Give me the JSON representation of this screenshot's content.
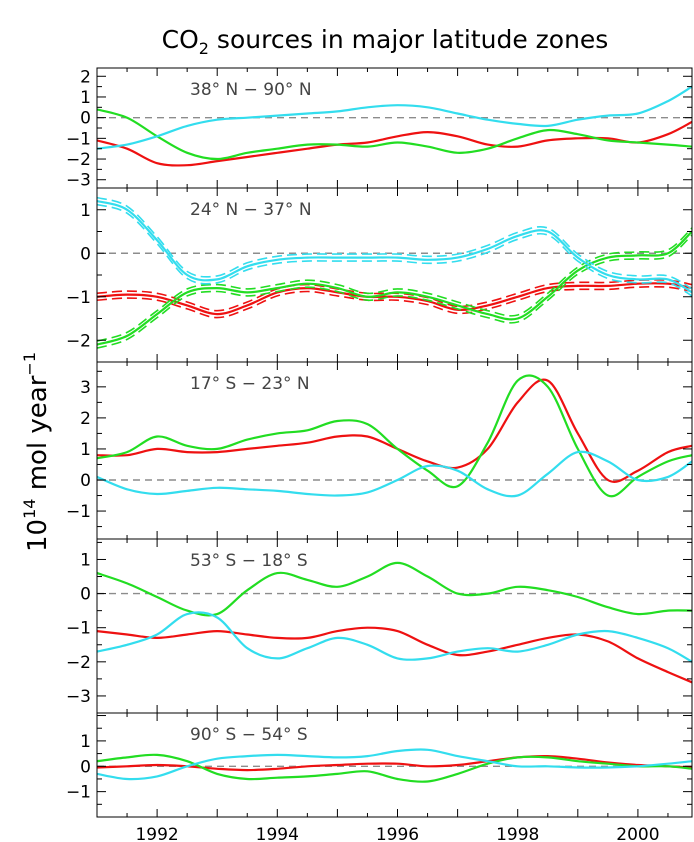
{
  "chart_data": {
    "type": "line",
    "title_main": "CO",
    "title_sub": "2",
    "title_rest": " sources in major latitude zones",
    "ylabel_main": "10",
    "ylabel_sup": "14",
    "ylabel_mid": " mol year",
    "ylabel_sup2": "−1",
    "xlim": [
      1991.0,
      2000.9
    ],
    "x_ticks": [
      1992,
      1994,
      1996,
      1998,
      2000
    ],
    "x_tick_labels": [
      "1992",
      "1994",
      "1996",
      "1998",
      "2000"
    ],
    "colors": {
      "red": "#ee1111",
      "green": "#22dd22",
      "cyan": "#33ddee"
    },
    "panels": [
      {
        "zone_label": "38° N − 90° N",
        "ylim": [
          -3.4,
          2.4
        ],
        "y_ticks": [
          2,
          1,
          0,
          -1,
          -2,
          -3
        ],
        "y_tick_labels": [
          "2",
          "1",
          "0",
          "−1",
          "−2",
          "−3"
        ],
        "series": [
          {
            "color": "red",
            "x": [
              1991.0,
              1991.5,
              1992.0,
              1992.5,
              1993.0,
              1993.5,
              1994.0,
              1994.5,
              1995.0,
              1995.5,
              1996.0,
              1996.5,
              1997.0,
              1997.5,
              1998.0,
              1998.5,
              1999.0,
              1999.5,
              2000.0,
              2000.5,
              2000.9
            ],
            "y": [
              -1.1,
              -1.5,
              -2.2,
              -2.3,
              -2.1,
              -1.9,
              -1.7,
              -1.5,
              -1.3,
              -1.2,
              -0.9,
              -0.7,
              -0.9,
              -1.3,
              -1.4,
              -1.1,
              -1.0,
              -1.0,
              -1.2,
              -0.8,
              -0.2
            ]
          },
          {
            "color": "green",
            "x": [
              1991.0,
              1991.5,
              1992.0,
              1992.5,
              1993.0,
              1993.5,
              1994.0,
              1994.5,
              1995.0,
              1995.5,
              1996.0,
              1996.5,
              1997.0,
              1997.5,
              1998.0,
              1998.5,
              1999.0,
              1999.5,
              2000.0,
              2000.5,
              2000.9
            ],
            "y": [
              0.4,
              0.0,
              -0.9,
              -1.7,
              -2.0,
              -1.7,
              -1.5,
              -1.3,
              -1.3,
              -1.4,
              -1.2,
              -1.4,
              -1.7,
              -1.5,
              -1.0,
              -0.6,
              -0.8,
              -1.1,
              -1.2,
              -1.3,
              -1.4
            ]
          },
          {
            "color": "cyan",
            "x": [
              1991.0,
              1991.5,
              1992.0,
              1992.5,
              1993.0,
              1993.5,
              1994.0,
              1994.5,
              1995.0,
              1995.5,
              1996.0,
              1996.5,
              1997.0,
              1997.5,
              1998.0,
              1998.5,
              1999.0,
              1999.5,
              2000.0,
              2000.5,
              2000.9
            ],
            "y": [
              -1.5,
              -1.3,
              -0.9,
              -0.4,
              -0.1,
              0.0,
              0.1,
              0.2,
              0.3,
              0.5,
              0.6,
              0.5,
              0.2,
              -0.1,
              -0.3,
              -0.4,
              -0.1,
              0.1,
              0.2,
              0.8,
              1.5
            ]
          }
        ]
      },
      {
        "zone_label": "24° N − 37° N",
        "ylim": [
          -2.5,
          1.5
        ],
        "y_ticks": [
          1,
          0,
          -1,
          -2
        ],
        "y_tick_labels": [
          "1",
          "0",
          "−1",
          "−2"
        ],
        "series": [
          {
            "color": "red",
            "x": [
              1991.0,
              1991.5,
              1992.0,
              1992.5,
              1993.0,
              1993.5,
              1994.0,
              1994.5,
              1995.0,
              1995.5,
              1996.0,
              1996.5,
              1997.0,
              1997.5,
              1998.0,
              1998.5,
              1999.0,
              1999.5,
              2000.0,
              2000.5,
              2000.9
            ],
            "y": [
              -1.0,
              -0.95,
              -1.0,
              -1.2,
              -1.4,
              -1.2,
              -0.9,
              -0.8,
              -0.9,
              -1.0,
              -1.0,
              -1.1,
              -1.3,
              -1.2,
              -1.0,
              -0.8,
              -0.75,
              -0.75,
              -0.7,
              -0.7,
              -0.8
            ]
          },
          {
            "color": "green",
            "x": [
              1991.0,
              1991.5,
              1992.0,
              1992.5,
              1993.0,
              1993.5,
              1994.0,
              1994.5,
              1995.0,
              1995.5,
              1996.0,
              1996.5,
              1997.0,
              1997.5,
              1998.0,
              1998.5,
              1999.0,
              1999.5,
              2000.0,
              2000.5,
              2000.9
            ],
            "y": [
              -2.1,
              -1.9,
              -1.4,
              -0.9,
              -0.8,
              -0.9,
              -0.8,
              -0.7,
              -0.8,
              -1.0,
              -0.9,
              -1.0,
              -1.2,
              -1.4,
              -1.5,
              -1.0,
              -0.4,
              -0.1,
              -0.05,
              0.0,
              0.5
            ]
          },
          {
            "color": "cyan",
            "x": [
              1991.0,
              1991.5,
              1992.0,
              1992.5,
              1993.0,
              1993.5,
              1994.0,
              1994.5,
              1995.0,
              1995.5,
              1996.0,
              1996.5,
              1997.0,
              1997.5,
              1998.0,
              1998.5,
              1999.0,
              1999.5,
              2000.0,
              2000.5,
              2000.9
            ],
            "y": [
              1.2,
              1.0,
              0.3,
              -0.5,
              -0.6,
              -0.3,
              -0.15,
              -0.1,
              -0.1,
              -0.1,
              -0.1,
              -0.15,
              -0.1,
              0.1,
              0.4,
              0.5,
              -0.1,
              -0.5,
              -0.6,
              -0.6,
              -0.9
            ]
          }
        ]
      },
      {
        "zone_label": "17° S − 23° N",
        "ylim": [
          -1.9,
          3.8
        ],
        "y_ticks": [
          3,
          2,
          1,
          0,
          -1
        ],
        "y_tick_labels": [
          "3",
          "2",
          "1",
          "0",
          "−1"
        ],
        "series": [
          {
            "color": "red",
            "x": [
              1991.0,
              1991.5,
              1992.0,
              1992.5,
              1993.0,
              1993.5,
              1994.0,
              1994.5,
              1995.0,
              1995.5,
              1996.0,
              1996.5,
              1997.0,
              1997.5,
              1998.0,
              1998.5,
              1999.0,
              1999.5,
              2000.0,
              2000.5,
              2000.9
            ],
            "y": [
              0.8,
              0.8,
              1.0,
              0.9,
              0.9,
              1.0,
              1.1,
              1.2,
              1.4,
              1.4,
              1.0,
              0.6,
              0.4,
              1.0,
              2.5,
              3.2,
              1.5,
              0.0,
              0.3,
              0.9,
              1.1
            ]
          },
          {
            "color": "green",
            "x": [
              1991.0,
              1991.5,
              1992.0,
              1992.5,
              1993.0,
              1993.5,
              1994.0,
              1994.5,
              1995.0,
              1995.5,
              1996.0,
              1996.5,
              1997.0,
              1997.5,
              1998.0,
              1998.5,
              1999.0,
              1999.5,
              2000.0,
              2000.5,
              2000.9
            ],
            "y": [
              0.7,
              0.9,
              1.4,
              1.1,
              1.0,
              1.3,
              1.5,
              1.6,
              1.9,
              1.8,
              1.0,
              0.3,
              -0.2,
              1.2,
              3.2,
              3.0,
              1.0,
              -0.5,
              0.1,
              0.6,
              0.8
            ]
          },
          {
            "color": "cyan",
            "x": [
              1991.0,
              1991.5,
              1992.0,
              1992.5,
              1993.0,
              1993.5,
              1994.0,
              1994.5,
              1995.0,
              1995.5,
              1996.0,
              1996.5,
              1997.0,
              1997.5,
              1998.0,
              1998.5,
              1999.0,
              1999.5,
              2000.0,
              2000.5,
              2000.9
            ],
            "y": [
              0.1,
              -0.3,
              -0.45,
              -0.35,
              -0.25,
              -0.3,
              -0.35,
              -0.45,
              -0.5,
              -0.4,
              0.0,
              0.45,
              0.3,
              -0.3,
              -0.5,
              0.2,
              0.9,
              0.6,
              0.0,
              0.1,
              0.6
            ]
          }
        ]
      },
      {
        "zone_label": "53° S − 18° S",
        "ylim": [
          -3.5,
          1.6
        ],
        "y_ticks": [
          1,
          0,
          -1,
          -2,
          -3
        ],
        "y_tick_labels": [
          "1",
          "0",
          "−1",
          "−2",
          "−3"
        ],
        "series": [
          {
            "color": "red",
            "x": [
              1991.0,
              1991.5,
              1992.0,
              1992.5,
              1993.0,
              1993.5,
              1994.0,
              1994.5,
              1995.0,
              1995.5,
              1996.0,
              1996.5,
              1997.0,
              1997.5,
              1998.0,
              1998.5,
              1999.0,
              1999.5,
              2000.0,
              2000.5,
              2000.9
            ],
            "y": [
              -1.1,
              -1.2,
              -1.3,
              -1.2,
              -1.1,
              -1.2,
              -1.3,
              -1.3,
              -1.1,
              -1.0,
              -1.1,
              -1.5,
              -1.8,
              -1.7,
              -1.5,
              -1.3,
              -1.2,
              -1.4,
              -1.9,
              -2.3,
              -2.6
            ]
          },
          {
            "color": "green",
            "x": [
              1991.0,
              1991.5,
              1992.0,
              1992.5,
              1993.0,
              1993.5,
              1994.0,
              1994.5,
              1995.0,
              1995.5,
              1996.0,
              1996.5,
              1997.0,
              1997.5,
              1998.0,
              1998.5,
              1999.0,
              1999.5,
              2000.0,
              2000.5,
              2000.9
            ],
            "y": [
              0.6,
              0.3,
              -0.1,
              -0.5,
              -0.6,
              0.1,
              0.6,
              0.4,
              0.2,
              0.5,
              0.9,
              0.5,
              0.0,
              0.0,
              0.2,
              0.1,
              -0.1,
              -0.4,
              -0.6,
              -0.5,
              -0.5
            ]
          },
          {
            "color": "cyan",
            "x": [
              1991.0,
              1991.5,
              1992.0,
              1992.5,
              1993.0,
              1993.5,
              1994.0,
              1994.5,
              1995.0,
              1995.5,
              1996.0,
              1996.5,
              1997.0,
              1997.5,
              1998.0,
              1998.5,
              1999.0,
              1999.5,
              2000.0,
              2000.5,
              2000.9
            ],
            "y": [
              -1.7,
              -1.5,
              -1.2,
              -0.6,
              -0.7,
              -1.6,
              -1.9,
              -1.6,
              -1.3,
              -1.5,
              -1.9,
              -1.9,
              -1.7,
              -1.6,
              -1.7,
              -1.5,
              -1.2,
              -1.1,
              -1.3,
              -1.6,
              -2.0
            ]
          }
        ]
      },
      {
        "zone_label": "90° S − 54° S",
        "ylim": [
          -2.0,
          2.1
        ],
        "y_ticks": [
          1,
          0,
          -1
        ],
        "y_tick_labels": [
          "1",
          "0",
          "−1"
        ],
        "series": [
          {
            "color": "red",
            "x": [
              1991.0,
              1991.5,
              1992.0,
              1992.5,
              1993.0,
              1993.5,
              1994.0,
              1994.5,
              1995.0,
              1995.5,
              1996.0,
              1996.5,
              1997.0,
              1997.5,
              1998.0,
              1998.5,
              1999.0,
              1999.5,
              2000.0,
              2000.5,
              2000.9
            ],
            "y": [
              -0.05,
              0.0,
              0.05,
              0.0,
              -0.1,
              -0.15,
              -0.1,
              0.0,
              0.05,
              0.1,
              0.1,
              0.0,
              0.05,
              0.2,
              0.35,
              0.4,
              0.3,
              0.15,
              0.05,
              0.0,
              -0.05
            ]
          },
          {
            "color": "green",
            "x": [
              1991.0,
              1991.5,
              1992.0,
              1992.5,
              1993.0,
              1993.5,
              1994.0,
              1994.5,
              1995.0,
              1995.5,
              1996.0,
              1996.5,
              1997.0,
              1997.5,
              1998.0,
              1998.5,
              1999.0,
              1999.5,
              2000.0,
              2000.5,
              2000.9
            ],
            "y": [
              0.2,
              0.35,
              0.45,
              0.2,
              -0.3,
              -0.5,
              -0.45,
              -0.4,
              -0.3,
              -0.2,
              -0.5,
              -0.6,
              -0.3,
              0.1,
              0.35,
              0.35,
              0.2,
              0.1,
              0.0,
              0.0,
              -0.1
            ]
          },
          {
            "color": "cyan",
            "x": [
              1991.0,
              1991.5,
              1992.0,
              1992.5,
              1993.0,
              1993.5,
              1994.0,
              1994.5,
              1995.0,
              1995.5,
              1996.0,
              1996.5,
              1997.0,
              1997.5,
              1998.0,
              1998.5,
              1999.0,
              1999.5,
              2000.0,
              2000.5,
              2000.9
            ],
            "y": [
              -0.3,
              -0.5,
              -0.4,
              0.0,
              0.3,
              0.4,
              0.45,
              0.4,
              0.35,
              0.4,
              0.6,
              0.65,
              0.4,
              0.2,
              0.0,
              0.0,
              -0.05,
              -0.05,
              0.0,
              0.1,
              0.2
            ]
          }
        ]
      }
    ]
  }
}
